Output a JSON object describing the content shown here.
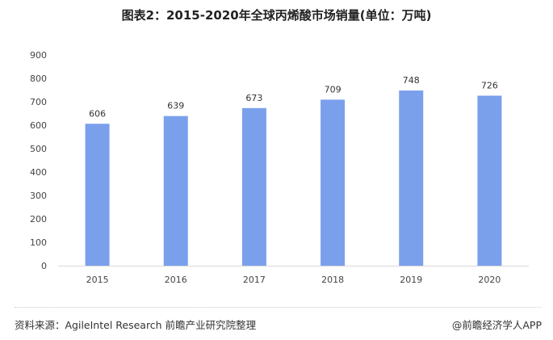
{
  "chart_data": {
    "type": "bar",
    "title": "图表2：2015-2020年全球丙烯酸市场销量(单位：万吨)",
    "categories": [
      "2015",
      "2016",
      "2017",
      "2018",
      "2019",
      "2020"
    ],
    "values": [
      606,
      639,
      673,
      709,
      748,
      726
    ],
    "data_labels": [
      "606",
      "639",
      "673",
      "709",
      "748",
      "726"
    ],
    "xlabel": "",
    "ylabel": "",
    "ylim": [
      0,
      900
    ],
    "yticks": [
      0,
      100,
      200,
      300,
      400,
      500,
      600,
      700,
      800,
      900
    ],
    "grid": false,
    "legend": "none",
    "bar_color": "#7aa0ec"
  },
  "footer": {
    "source": "资料来源：AgileIntel Research 前瞻产业研究院整理",
    "credit": "@前瞻经济学人APP"
  }
}
